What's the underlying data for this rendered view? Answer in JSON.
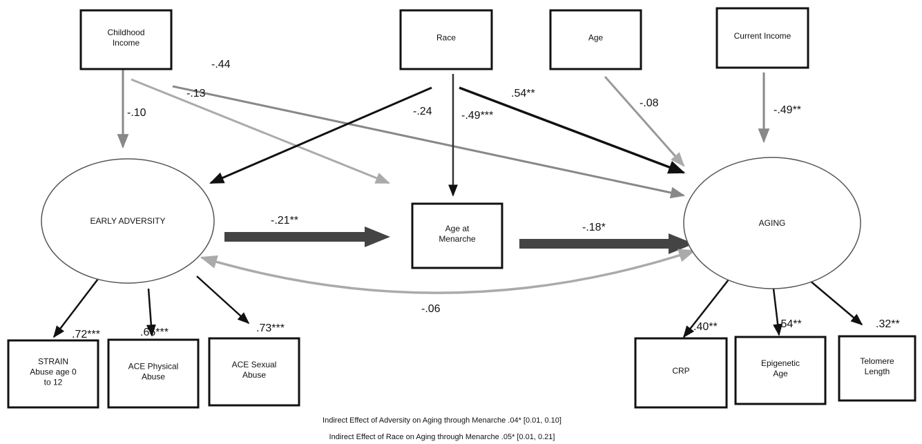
{
  "nodes": [
    {
      "lines": [
        "Childhood",
        "Income"
      ]
    },
    {
      "lines": [
        "Race"
      ]
    },
    {
      "lines": [
        "Age"
      ]
    },
    {
      "lines": [
        "Current Income"
      ]
    },
    {
      "lines": [
        "EARLY ADVERSITY"
      ]
    },
    {
      "lines": [
        "Age at",
        "Menarche"
      ]
    },
    {
      "lines": [
        "AGING"
      ]
    },
    {
      "lines": [
        "STRAIN",
        "Abuse age 0",
        "to 12"
      ]
    },
    {
      "lines": [
        "ACE Physical",
        "Abuse"
      ]
    },
    {
      "lines": [
        "ACE Sexual",
        "Abuse"
      ]
    },
    {
      "lines": [
        "CRP"
      ]
    },
    {
      "lines": [
        "Epigenetic",
        "Age"
      ]
    },
    {
      "lines": [
        "Telomere",
        "Length"
      ]
    }
  ],
  "edges": [
    {
      "label": "-.10"
    },
    {
      "label": "-.13"
    },
    {
      "label": "-.44"
    },
    {
      "label": "-.24"
    },
    {
      "label": "-.49***"
    },
    {
      "label": ".54**"
    },
    {
      "label": "-.08"
    },
    {
      "label": "-.49**"
    },
    {
      "label": "-.21**"
    },
    {
      "label": "-.18*"
    },
    {
      "label": "-.06"
    },
    {
      "label": ".72***"
    },
    {
      "label": ".66***"
    },
    {
      "label": ".73***"
    },
    {
      "label": ".40**"
    },
    {
      "label": ".54**"
    },
    {
      "label": ".32**"
    }
  ],
  "notes": [
    "Indirect Effect of Adversity on Aging through Menarche .04* [0.01, 0.10]",
    "Indirect Effect of Race on Aging through Menarche .05* [0.01, 0.21]"
  ]
}
